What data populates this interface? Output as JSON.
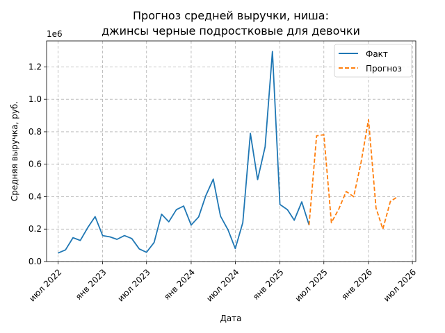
{
  "chart_data": {
    "type": "line",
    "title_line1": "Прогноз средней выручки, ниша:",
    "title_line2": "джинсы черные подростковые для девочки",
    "xlabel": "Дата",
    "ylabel": "Средняя выручка, руб.",
    "y_offset_label": "1e6",
    "y_multiplier": 1000000,
    "ylim": [
      0,
      1360000
    ],
    "xlim": [
      "2022-05-15",
      "2026-07-15"
    ],
    "grid": true,
    "legend_position": "top-right",
    "y_ticks": [
      0,
      200000,
      400000,
      600000,
      800000,
      1000000,
      1200000
    ],
    "y_tick_labels": [
      "0.0",
      "0.2",
      "0.4",
      "0.6",
      "0.8",
      "1.0",
      "1.2"
    ],
    "x_ticks": [
      "2022-07-01",
      "2023-01-01",
      "2023-07-01",
      "2024-01-01",
      "2024-07-01",
      "2025-01-01",
      "2025-07-01",
      "2026-01-01",
      "2026-07-01"
    ],
    "x_tick_labels": [
      "июл 2022",
      "янв 2023",
      "июл 2023",
      "янв 2024",
      "июл 2024",
      "янв 2025",
      "июл 2025",
      "янв 2026",
      "июл 2026"
    ],
    "series": [
      {
        "name": "Факт",
        "color": "#1f77b4",
        "style": "solid",
        "x": [
          "2022-07-01",
          "2022-08-01",
          "2022-09-01",
          "2022-10-01",
          "2022-11-01",
          "2022-12-01",
          "2023-01-01",
          "2023-02-01",
          "2023-03-01",
          "2023-04-01",
          "2023-05-01",
          "2023-06-01",
          "2023-07-01",
          "2023-08-01",
          "2023-09-01",
          "2023-10-01",
          "2023-11-01",
          "2023-12-01",
          "2024-01-01",
          "2024-02-01",
          "2024-03-01",
          "2024-04-01",
          "2024-05-01",
          "2024-06-01",
          "2024-07-01",
          "2024-08-01",
          "2024-09-01",
          "2024-10-01",
          "2024-11-01",
          "2024-12-01",
          "2025-01-01",
          "2025-02-01",
          "2025-03-01",
          "2025-04-01",
          "2025-05-01"
        ],
        "values": [
          52000,
          72000,
          147000,
          130000,
          210000,
          277000,
          160000,
          152000,
          137000,
          160000,
          142000,
          78000,
          57000,
          117000,
          292000,
          245000,
          320000,
          342000,
          225000,
          275000,
          405000,
          508000,
          280000,
          195000,
          80000,
          240000,
          790000,
          505000,
          708000,
          1295000,
          352000,
          320000,
          255000,
          368000,
          225000
        ]
      },
      {
        "name": "Прогноз",
        "color": "#ff7f0e",
        "style": "dashed",
        "x": [
          "2025-05-01",
          "2025-06-01",
          "2025-07-01",
          "2025-08-01",
          "2025-09-01",
          "2025-10-01",
          "2025-11-01",
          "2025-12-01",
          "2026-01-01",
          "2026-02-01",
          "2026-03-01",
          "2026-04-01",
          "2026-05-01"
        ],
        "values": [
          225000,
          775000,
          782000,
          240000,
          325000,
          432000,
          400000,
          610000,
          875000,
          330000,
          200000,
          370000,
          400000
        ]
      }
    ]
  }
}
